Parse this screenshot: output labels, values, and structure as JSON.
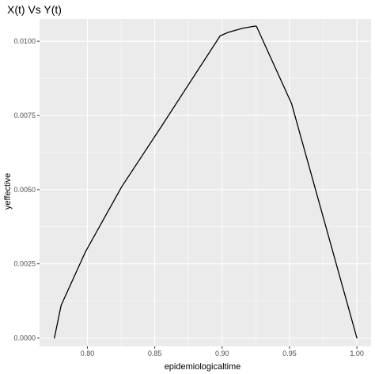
{
  "chart_data": {
    "type": "line",
    "title": "X(t) Vs Y(t)",
    "xlabel": "epidemiologicaltime",
    "ylabel": "yeffective",
    "xlim": [
      0.7645,
      1.0105
    ],
    "ylim": [
      -0.00028,
      0.01075
    ],
    "x_ticks": [
      0.8,
      0.85,
      0.9,
      0.95,
      1.0
    ],
    "x_tick_labels": [
      "0.80",
      "0.85",
      "0.90",
      "0.95",
      "1.00"
    ],
    "y_ticks": [
      0.0,
      0.0025,
      0.005,
      0.0075,
      0.01
    ],
    "y_tick_labels": [
      "0.0000",
      "0.0025",
      "0.0050",
      "0.0075",
      "0.0100"
    ],
    "grid": true,
    "panel_background": "#ebebeb",
    "grid_color": "#ffffff",
    "line_color": "#000000",
    "series": [
      {
        "x": [
          0.7755,
          0.7805,
          0.7985,
          0.8255,
          0.8545,
          0.8985,
          0.9045,
          0.9155,
          0.9245,
          0.9255,
          0.9515,
          1.0
        ],
        "y": [
          0.0,
          0.0011,
          0.0029,
          0.0051,
          0.0071,
          0.01018,
          0.0103,
          0.01044,
          0.01051,
          0.0105,
          0.0079,
          0.0
        ]
      }
    ]
  }
}
